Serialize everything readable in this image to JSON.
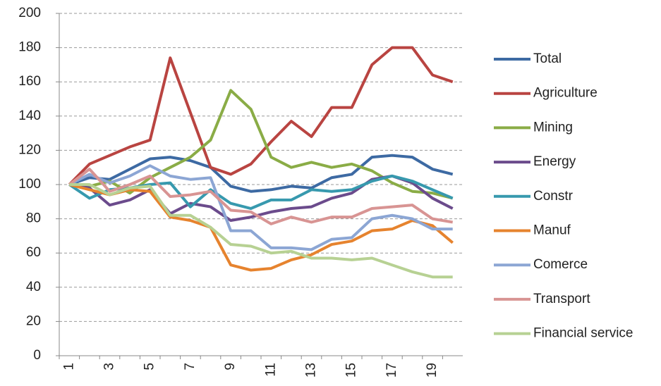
{
  "chart_data": {
    "type": "line",
    "categories": [
      "1",
      null,
      "3",
      null,
      "5",
      null,
      "7",
      null,
      "9",
      null,
      "11",
      null,
      "13",
      null,
      "15",
      null,
      "17",
      null,
      "19",
      null
    ],
    "ylim": [
      0,
      200
    ],
    "yticks": [
      0,
      20,
      40,
      60,
      80,
      100,
      120,
      140,
      160,
      180,
      200
    ],
    "grid": true,
    "legend": "right",
    "series": [
      {
        "name": "Total",
        "color": "#3d6aa3",
        "values": [
          100,
          104,
          103,
          109,
          115,
          116,
          114,
          110,
          99,
          96,
          97,
          99,
          98,
          104,
          106,
          116,
          117,
          116,
          109,
          106
        ]
      },
      {
        "name": "Agriculture",
        "color": "#b94441",
        "values": [
          100,
          112,
          117,
          122,
          126,
          174,
          142,
          110,
          106,
          112,
          125,
          137,
          128,
          145,
          145,
          170,
          180,
          180,
          164,
          160
        ]
      },
      {
        "name": "Mining",
        "color": "#8aac46",
        "values": [
          100,
          99,
          102,
          95,
          104,
          110,
          116,
          126,
          155,
          144,
          116,
          110,
          113,
          110,
          112,
          108,
          101,
          96,
          95,
          92
        ]
      },
      {
        "name": "Energy",
        "color": "#6b4b8c",
        "values": [
          100,
          98,
          88,
          91,
          97,
          83,
          89,
          87,
          79,
          81,
          84,
          86,
          87,
          92,
          95,
          103,
          105,
          101,
          92,
          86
        ]
      },
      {
        "name": "Constr",
        "color": "#3799ae",
        "values": [
          100,
          92,
          97,
          98,
          100,
          101,
          87,
          97,
          89,
          86,
          91,
          91,
          97,
          96,
          97,
          102,
          105,
          102,
          97,
          92
        ]
      },
      {
        "name": "Manuf",
        "color": "#e6832e",
        "values": [
          100,
          97,
          94,
          97,
          96,
          81,
          79,
          75,
          53,
          50,
          51,
          56,
          59,
          65,
          67,
          73,
          74,
          79,
          76,
          66
        ]
      },
      {
        "name": "Comerce",
        "color": "#8ca6d4",
        "values": [
          100,
          106,
          101,
          105,
          111,
          105,
          103,
          104,
          73,
          73,
          63,
          63,
          62,
          68,
          69,
          80,
          82,
          80,
          74,
          74
        ]
      },
      {
        "name": "Transport",
        "color": "#d89493",
        "values": [
          100,
          109,
          96,
          100,
          105,
          93,
          94,
          96,
          85,
          84,
          77,
          81,
          78,
          81,
          81,
          86,
          87,
          88,
          80,
          78
        ]
      },
      {
        "name": "Financial service",
        "color": "#b7d193",
        "values": [
          100,
          100,
          94,
          98,
          99,
          82,
          82,
          75,
          65,
          64,
          60,
          61,
          57,
          57,
          56,
          57,
          53,
          49,
          46,
          46
        ]
      }
    ]
  }
}
